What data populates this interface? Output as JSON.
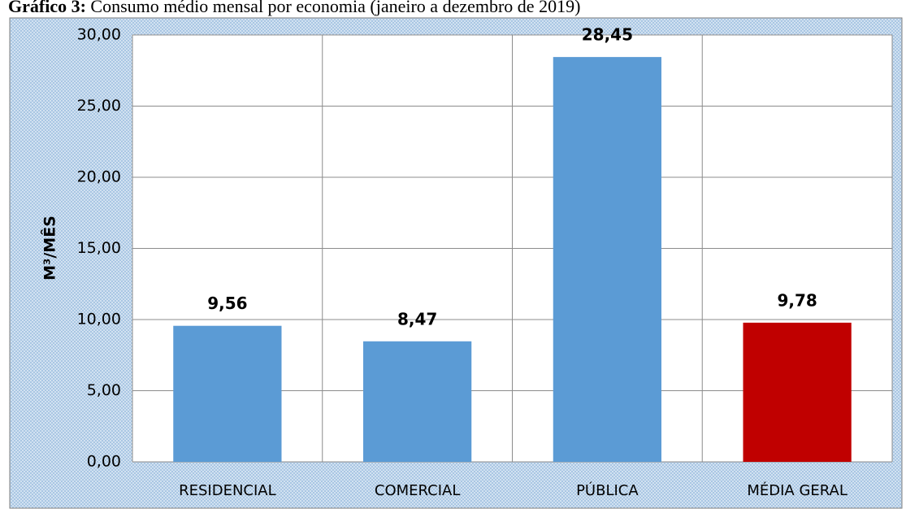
{
  "chart_data": {
    "type": "bar",
    "title_prefix": "Gráfico 3:",
    "title": "Consumo médio mensal por economia (janeiro a dezembro de 2019)",
    "y_label": "M³/MÊS",
    "categories": [
      "RESIDENCIAL",
      "COMERCIAL",
      "PÚBLICA",
      "MÉDIA GERAL"
    ],
    "values": [
      9.56,
      8.47,
      28.45,
      9.78
    ],
    "value_labels": [
      "9,56",
      "8,47",
      "28,45",
      "9,78"
    ],
    "colors": [
      "#5b9bd5",
      "#5b9bd5",
      "#5b9bd5",
      "#c00000"
    ],
    "ylim": [
      0,
      30
    ],
    "yticks": [
      {
        "value": 0,
        "label": "0,00"
      },
      {
        "value": 5,
        "label": "5,00"
      },
      {
        "value": 10,
        "label": "10,00"
      },
      {
        "value": 15,
        "label": "15,00"
      },
      {
        "value": 20,
        "label": "20,00"
      },
      {
        "value": 25,
        "label": "25,00"
      },
      {
        "value": 30,
        "label": "30,00"
      }
    ],
    "grid": true
  }
}
